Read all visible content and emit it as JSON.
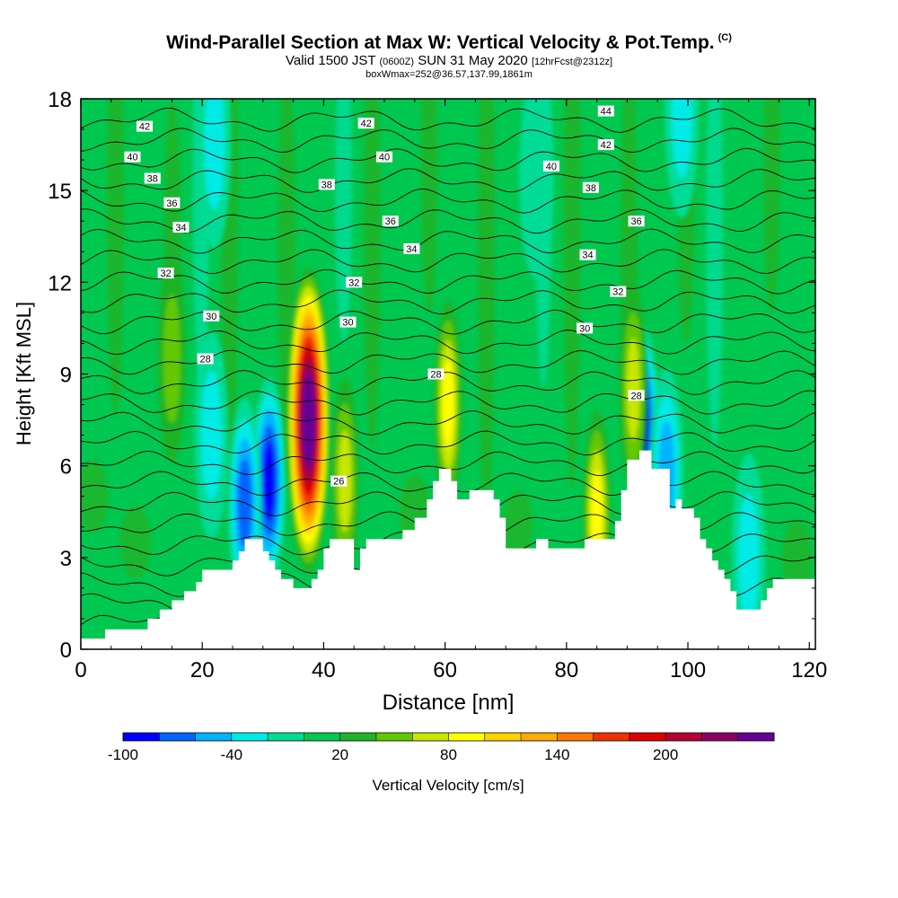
{
  "title": {
    "main": "Wind-Parallel Section at Max W: Vertical Velocity & Pot.Temp.",
    "copyright": "(C)",
    "valid_prefix": "Valid 1500 JST",
    "valid_utc": "(0600Z)",
    "valid_date": "SUN 31 May 2020",
    "forecast_info": "[12hrFcst@2312z]",
    "boxwmax": "boxWmax=252@36.57,137.99,1861m"
  },
  "chart_data": {
    "type": "heatmap",
    "xlabel": "Distance [nm]",
    "ylabel": "Height [Kft MSL]",
    "xlim": [
      0,
      121
    ],
    "ylim": [
      0,
      18
    ],
    "x_ticks": [
      0,
      20,
      40,
      60,
      80,
      100,
      120
    ],
    "y_ticks": [
      0,
      3,
      6,
      9,
      12,
      15,
      18
    ],
    "colorbar": {
      "label": "Vertical Velocity [cm/s]",
      "tick_values": [
        -100,
        -40,
        20,
        80,
        140,
        200
      ],
      "tick_labels": [
        "-100",
        "-40",
        "20",
        "80",
        "140",
        "200"
      ],
      "bins": [
        {
          "from": -100,
          "to": -80,
          "color": "#0000ff"
        },
        {
          "from": -80,
          "to": -60,
          "color": "#0063ff"
        },
        {
          "from": -60,
          "to": -40,
          "color": "#00b4ff"
        },
        {
          "from": -40,
          "to": -20,
          "color": "#00ebe6"
        },
        {
          "from": -20,
          "to": 0,
          "color": "#00dc96"
        },
        {
          "from": 0,
          "to": 20,
          "color": "#00c850"
        },
        {
          "from": 20,
          "to": 40,
          "color": "#1eb428"
        },
        {
          "from": 40,
          "to": 60,
          "color": "#64c800"
        },
        {
          "from": 60,
          "to": 80,
          "color": "#c8e600"
        },
        {
          "from": 80,
          "to": 100,
          "color": "#ffff00"
        },
        {
          "from": 100,
          "to": 120,
          "color": "#ffd200"
        },
        {
          "from": 120,
          "to": 140,
          "color": "#ffaa00"
        },
        {
          "from": 140,
          "to": 160,
          "color": "#ff7800"
        },
        {
          "from": 160,
          "to": 180,
          "color": "#f03200"
        },
        {
          "from": 180,
          "to": 200,
          "color": "#dc0000"
        },
        {
          "from": 200,
          "to": 220,
          "color": "#b40032"
        },
        {
          "from": 220,
          "to": 240,
          "color": "#8c0064"
        },
        {
          "from": 240,
          "to": 260,
          "color": "#640096"
        }
      ]
    },
    "terrain": [
      [
        0,
        0.35
      ],
      [
        4,
        0.35
      ],
      [
        4,
        0.65
      ],
      [
        11,
        0.65
      ],
      [
        11,
        1.0
      ],
      [
        13,
        1.0
      ],
      [
        13,
        1.3
      ],
      [
        15,
        1.3
      ],
      [
        15,
        1.6
      ],
      [
        17,
        1.6
      ],
      [
        17,
        1.9
      ],
      [
        19,
        1.9
      ],
      [
        19,
        2.2
      ],
      [
        20,
        2.2
      ],
      [
        20,
        2.6
      ],
      [
        25,
        2.6
      ],
      [
        25,
        2.9
      ],
      [
        26,
        2.9
      ],
      [
        26,
        3.2
      ],
      [
        27,
        3.2
      ],
      [
        27,
        3.6
      ],
      [
        30,
        3.6
      ],
      [
        30,
        3.2
      ],
      [
        31,
        3.2
      ],
      [
        31,
        2.9
      ],
      [
        32,
        2.9
      ],
      [
        32,
        2.6
      ],
      [
        33,
        2.6
      ],
      [
        33,
        2.3
      ],
      [
        35,
        2.3
      ],
      [
        35,
        2.0
      ],
      [
        38,
        2.0
      ],
      [
        38,
        2.3
      ],
      [
        39,
        2.3
      ],
      [
        39,
        2.6
      ],
      [
        40,
        2.6
      ],
      [
        40,
        3.3
      ],
      [
        41,
        3.3
      ],
      [
        41,
        3.6
      ],
      [
        45,
        3.6
      ],
      [
        45,
        2.6
      ],
      [
        46,
        2.6
      ],
      [
        46,
        3.3
      ],
      [
        47,
        3.3
      ],
      [
        47,
        3.6
      ],
      [
        53,
        3.6
      ],
      [
        53,
        3.9
      ],
      [
        55,
        3.9
      ],
      [
        55,
        4.3
      ],
      [
        57,
        4.3
      ],
      [
        57,
        4.9
      ],
      [
        58,
        4.9
      ],
      [
        58,
        5.5
      ],
      [
        59,
        5.5
      ],
      [
        59,
        5.9
      ],
      [
        61,
        5.9
      ],
      [
        61,
        5.5
      ],
      [
        62,
        5.5
      ],
      [
        62,
        4.9
      ],
      [
        64,
        4.9
      ],
      [
        64,
        5.2
      ],
      [
        68,
        5.2
      ],
      [
        68,
        4.9
      ],
      [
        69,
        4.9
      ],
      [
        69,
        4.3
      ],
      [
        70,
        4.3
      ],
      [
        70,
        3.3
      ],
      [
        75,
        3.3
      ],
      [
        75,
        3.6
      ],
      [
        77,
        3.6
      ],
      [
        77,
        3.3
      ],
      [
        83,
        3.3
      ],
      [
        83,
        3.6
      ],
      [
        88,
        3.6
      ],
      [
        88,
        4.2
      ],
      [
        89,
        4.2
      ],
      [
        89,
        5.2
      ],
      [
        90,
        5.2
      ],
      [
        90,
        6.2
      ],
      [
        92,
        6.2
      ],
      [
        92,
        6.5
      ],
      [
        94,
        6.5
      ],
      [
        94,
        5.9
      ],
      [
        97,
        5.9
      ],
      [
        97,
        4.6
      ],
      [
        98,
        4.6
      ],
      [
        98,
        4.9
      ],
      [
        99,
        4.9
      ],
      [
        99,
        4.6
      ],
      [
        101,
        4.6
      ],
      [
        101,
        4.3
      ],
      [
        102,
        4.3
      ],
      [
        102,
        3.6
      ],
      [
        103,
        3.6
      ],
      [
        103,
        3.3
      ],
      [
        104,
        3.3
      ],
      [
        104,
        2.9
      ],
      [
        105,
        2.9
      ],
      [
        105,
        2.6
      ],
      [
        106,
        2.6
      ],
      [
        106,
        2.3
      ],
      [
        107,
        2.3
      ],
      [
        107,
        1.9
      ],
      [
        108,
        1.9
      ],
      [
        108,
        1.3
      ],
      [
        112,
        1.3
      ],
      [
        112,
        1.6
      ],
      [
        113,
        1.6
      ],
      [
        113,
        2.0
      ],
      [
        114,
        2.0
      ],
      [
        114,
        2.3
      ],
      [
        121,
        2.3
      ]
    ],
    "updraft_cores": [
      {
        "x": 37.5,
        "y": 7.5,
        "w_max": 252
      },
      {
        "x": 60.5,
        "y": 8.0,
        "w_max": 90
      },
      {
        "x": 85,
        "y": 4.4,
        "w_max": 105
      },
      {
        "x": 43.5,
        "y": 5.5,
        "w_max": 75
      },
      {
        "x": 15,
        "y": 9.5,
        "w_max": 50
      },
      {
        "x": 91,
        "y": 8.5,
        "w_max": 70
      }
    ],
    "downdraft_cores": [
      {
        "x": 31,
        "y": 5.5,
        "w_min": -90
      },
      {
        "x": 92.5,
        "y": 7.2,
        "w_min": -100
      },
      {
        "x": 27,
        "y": 4.8,
        "w_min": -80
      },
      {
        "x": 21.5,
        "y": 7.0,
        "w_min": -40
      },
      {
        "x": 96.5,
        "y": 5.8,
        "w_min": -60
      },
      {
        "x": 110,
        "y": 3.0,
        "w_min": -40
      },
      {
        "x": 99,
        "y": 17.5,
        "w_min": -30
      },
      {
        "x": 22,
        "y": 16.5,
        "w_min": -30
      },
      {
        "x": 75,
        "y": 15.5,
        "w_min": -15
      }
    ],
    "isentrope_labels": [
      {
        "text": "42",
        "x": 10.5,
        "y": 17.1
      },
      {
        "text": "40",
        "x": 8.5,
        "y": 16.1
      },
      {
        "text": "38",
        "x": 11.8,
        "y": 15.4
      },
      {
        "text": "36",
        "x": 15,
        "y": 14.6
      },
      {
        "text": "34",
        "x": 16.5,
        "y": 13.8
      },
      {
        "text": "32",
        "x": 14,
        "y": 12.3
      },
      {
        "text": "30",
        "x": 21.5,
        "y": 10.9
      },
      {
        "text": "28",
        "x": 20.5,
        "y": 9.5
      },
      {
        "text": "42",
        "x": 47,
        "y": 17.2
      },
      {
        "text": "40",
        "x": 50,
        "y": 16.1
      },
      {
        "text": "38",
        "x": 40.5,
        "y": 15.2
      },
      {
        "text": "36",
        "x": 51,
        "y": 14.0
      },
      {
        "text": "34",
        "x": 54.5,
        "y": 13.1
      },
      {
        "text": "32",
        "x": 45,
        "y": 12.0
      },
      {
        "text": "30",
        "x": 44,
        "y": 10.7
      },
      {
        "text": "28",
        "x": 58.5,
        "y": 9.0
      },
      {
        "text": "26",
        "x": 42.5,
        "y": 5.5
      },
      {
        "text": "44",
        "x": 86.5,
        "y": 17.6
      },
      {
        "text": "42",
        "x": 86.5,
        "y": 16.5
      },
      {
        "text": "40",
        "x": 77.5,
        "y": 15.8
      },
      {
        "text": "38",
        "x": 84,
        "y": 15.1
      },
      {
        "text": "36",
        "x": 91.5,
        "y": 14.0
      },
      {
        "text": "34",
        "x": 83.5,
        "y": 12.9
      },
      {
        "text": "32",
        "x": 88.5,
        "y": 11.7
      },
      {
        "text": "30",
        "x": 83,
        "y": 10.5
      },
      {
        "text": "28",
        "x": 91.5,
        "y": 8.3
      }
    ]
  }
}
